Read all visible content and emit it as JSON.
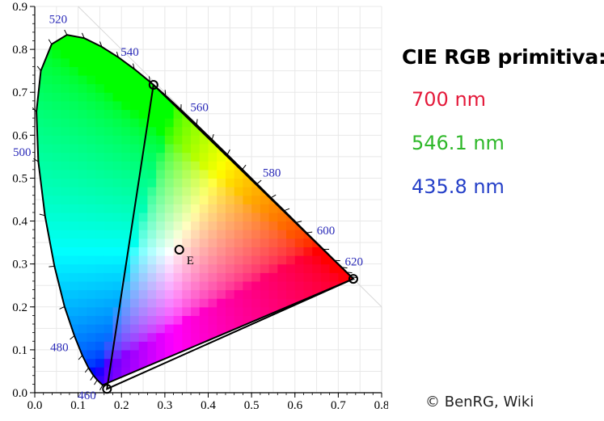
{
  "chart_data": {
    "type": "scatter",
    "title": "",
    "xlabel": "",
    "ylabel": "",
    "xlim": [
      0,
      0.8
    ],
    "ylim": [
      0,
      0.9
    ],
    "x_ticks": [
      "0.0",
      "0.1",
      "0.2",
      "0.3",
      "0.4",
      "0.5",
      "0.6",
      "0.7",
      "0.8"
    ],
    "y_ticks": [
      "0.0",
      "0.1",
      "0.2",
      "0.3",
      "0.4",
      "0.5",
      "0.6",
      "0.7",
      "0.8",
      "0.9"
    ],
    "grid": true,
    "spectral_locus": [
      {
        "nm": 450,
        "x": 0.1566,
        "y": 0.0177
      },
      {
        "nm": 460,
        "x": 0.144,
        "y": 0.0297
      },
      {
        "nm": 465,
        "x": 0.1355,
        "y": 0.0399
      },
      {
        "nm": 470,
        "x": 0.1241,
        "y": 0.0578
      },
      {
        "nm": 475,
        "x": 0.1096,
        "y": 0.0868
      },
      {
        "nm": 480,
        "x": 0.0913,
        "y": 0.1327
      },
      {
        "nm": 485,
        "x": 0.0687,
        "y": 0.2007
      },
      {
        "nm": 490,
        "x": 0.0454,
        "y": 0.295
      },
      {
        "nm": 495,
        "x": 0.0235,
        "y": 0.4127
      },
      {
        "nm": 500,
        "x": 0.0082,
        "y": 0.5384
      },
      {
        "nm": 505,
        "x": 0.0039,
        "y": 0.6548
      },
      {
        "nm": 510,
        "x": 0.0139,
        "y": 0.7502
      },
      {
        "nm": 515,
        "x": 0.0389,
        "y": 0.812
      },
      {
        "nm": 520,
        "x": 0.0743,
        "y": 0.8338
      },
      {
        "nm": 525,
        "x": 0.1142,
        "y": 0.8262
      },
      {
        "nm": 530,
        "x": 0.1547,
        "y": 0.8059
      },
      {
        "nm": 535,
        "x": 0.1929,
        "y": 0.7816
      },
      {
        "nm": 540,
        "x": 0.2296,
        "y": 0.7543
      },
      {
        "nm": 545,
        "x": 0.2658,
        "y": 0.7243
      },
      {
        "nm": 550,
        "x": 0.3016,
        "y": 0.6923
      },
      {
        "nm": 555,
        "x": 0.3373,
        "y": 0.6589
      },
      {
        "nm": 560,
        "x": 0.3731,
        "y": 0.6245
      },
      {
        "nm": 565,
        "x": 0.4087,
        "y": 0.5896
      },
      {
        "nm": 570,
        "x": 0.4441,
        "y": 0.5547
      },
      {
        "nm": 575,
        "x": 0.4788,
        "y": 0.5202
      },
      {
        "nm": 580,
        "x": 0.5125,
        "y": 0.4866
      },
      {
        "nm": 585,
        "x": 0.5448,
        "y": 0.4544
      },
      {
        "nm": 590,
        "x": 0.5752,
        "y": 0.4242
      },
      {
        "nm": 595,
        "x": 0.6029,
        "y": 0.3965
      },
      {
        "nm": 600,
        "x": 0.627,
        "y": 0.3725
      },
      {
        "nm": 610,
        "x": 0.6658,
        "y": 0.334
      },
      {
        "nm": 620,
        "x": 0.6915,
        "y": 0.3083
      },
      {
        "nm": 630,
        "x": 0.7079,
        "y": 0.292
      },
      {
        "nm": 640,
        "x": 0.719,
        "y": 0.2809
      },
      {
        "nm": 660,
        "x": 0.73,
        "y": 0.27
      },
      {
        "nm": 700,
        "x": 0.7347,
        "y": 0.2653
      }
    ],
    "wavelength_labels": [
      {
        "text": "460",
        "nm": 460
      },
      {
        "text": "480",
        "nm": 480
      },
      {
        "text": "500",
        "nm": 500
      },
      {
        "text": "520",
        "nm": 520
      },
      {
        "text": "540",
        "nm": 540
      },
      {
        "text": "560",
        "nm": 560
      },
      {
        "text": "580",
        "nm": 580
      },
      {
        "text": "600",
        "nm": 600
      },
      {
        "text": "620",
        "nm": 620
      }
    ],
    "primaries": [
      {
        "name": "700 nm",
        "x": 0.7347,
        "y": 0.2653,
        "color": "#e4193a"
      },
      {
        "name": "546.1 nm",
        "x": 0.2738,
        "y": 0.7174,
        "color": "#2fb82a"
      },
      {
        "name": "435.8 nm",
        "x": 0.1666,
        "y": 0.0089,
        "color": "#2540c8"
      }
    ],
    "white_point": {
      "label": "E",
      "x": 0.3333,
      "y": 0.3333
    }
  },
  "legend": {
    "title": "CIE RGB primitiva:",
    "items": [
      {
        "text": "700 nm",
        "color": "#e4193a"
      },
      {
        "text": "546.1 nm",
        "color": "#2fb82a"
      },
      {
        "text": "435.8 nm",
        "color": "#2540c8"
      }
    ]
  },
  "credit": "© BenRG, Wiki"
}
